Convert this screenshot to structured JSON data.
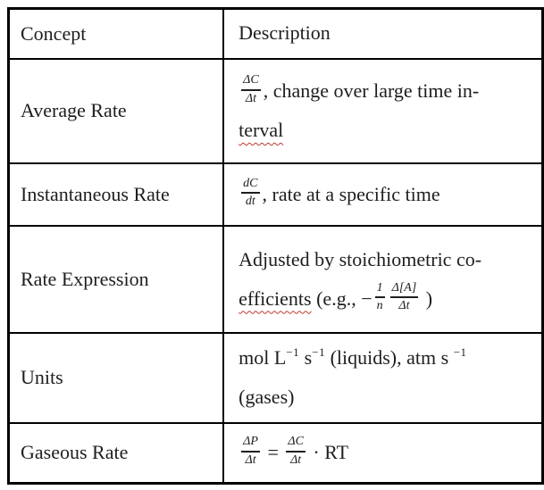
{
  "colors": {
    "background": "#ffffff",
    "text": "#1e1e1e",
    "border": "#000000",
    "squiggle": "#c0392b"
  },
  "table": {
    "columns": [
      "Concept",
      "Description"
    ],
    "rows": [
      {
        "concept": "Average Rate",
        "description": [
          {
            "t": "frac",
            "num": "ΔC",
            "den": "Δt"
          },
          {
            "t": "text",
            "v": ", change over large time in-"
          },
          {
            "t": "br"
          },
          {
            "t": "wavy",
            "v": "terval"
          }
        ]
      },
      {
        "concept": "Instantaneous Rate",
        "description": [
          {
            "t": "frac",
            "num": "dC",
            "den": "dt"
          },
          {
            "t": "text",
            "v": ", rate at a specific time"
          }
        ]
      },
      {
        "concept": "Rate Expression",
        "description": [
          {
            "t": "text",
            "v": "Adjusted by stoichiometric co-"
          },
          {
            "t": "br"
          },
          {
            "t": "wavy",
            "v": "efficients"
          },
          {
            "t": "text",
            "v": " (e.g., −"
          },
          {
            "t": "frac",
            "num": "1",
            "den": "n"
          },
          {
            "t": "frac",
            "num": "Δ[A]",
            "den": "Δt"
          },
          {
            "t": "text",
            "v": " )"
          }
        ]
      },
      {
        "concept": "Units",
        "description": [
          {
            "t": "text",
            "v": "mol L"
          },
          {
            "t": "sup",
            "v": "−1"
          },
          {
            "t": "text",
            "v": " s"
          },
          {
            "t": "sup",
            "v": "−1"
          },
          {
            "t": "text",
            "v": " (liquids), atm s "
          },
          {
            "t": "sup",
            "v": "−1"
          },
          {
            "t": "br"
          },
          {
            "t": "text",
            "v": "(gases)"
          }
        ]
      },
      {
        "concept": "Gaseous Rate",
        "description": [
          {
            "t": "frac",
            "num": "ΔP",
            "den": "Δt"
          },
          {
            "t": "text",
            "v": " = "
          },
          {
            "t": "frac",
            "num": "ΔC",
            "den": "Δt"
          },
          {
            "t": "text",
            "v": " · RT"
          }
        ]
      }
    ]
  }
}
